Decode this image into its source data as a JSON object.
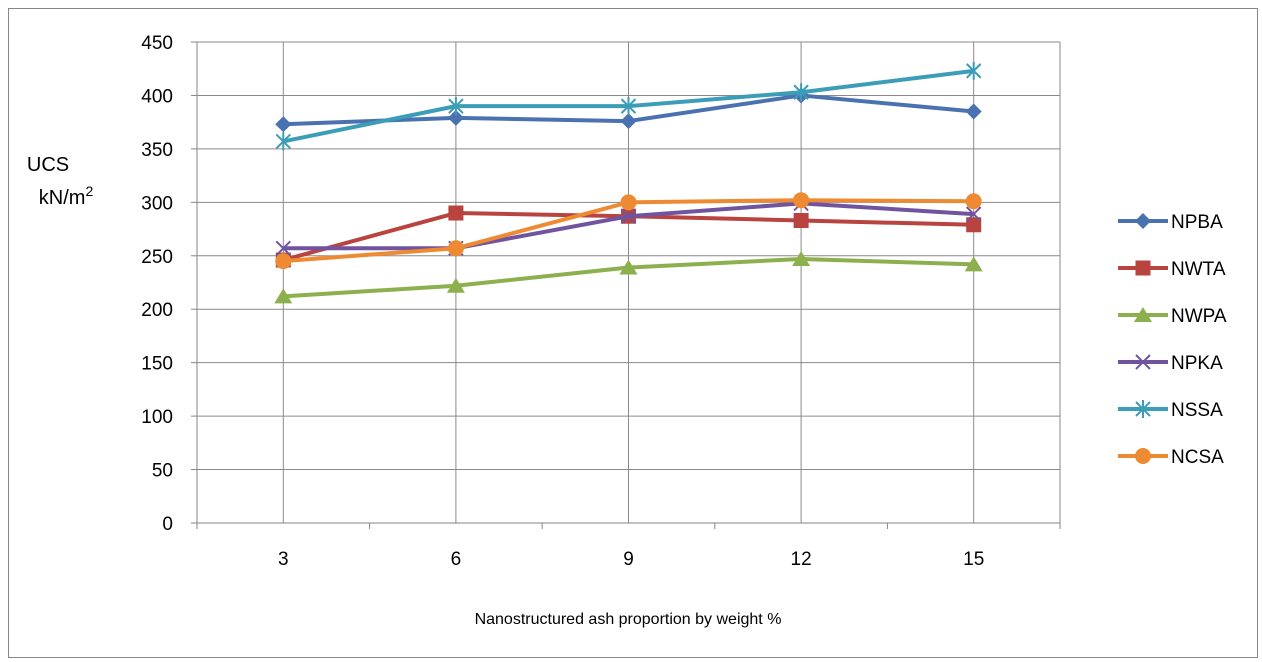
{
  "chart_data": {
    "type": "line",
    "x": [
      3,
      6,
      9,
      12,
      15
    ],
    "ylim": [
      0,
      450
    ],
    "yticks": [
      0,
      50,
      100,
      150,
      200,
      250,
      300,
      350,
      400,
      450
    ],
    "ylabel_line1": "UCS",
    "ylabel_unit": "kN/m",
    "ylabel_sup": "2",
    "xlabel": "Nanostructured ash proportion by weight %",
    "grid": true,
    "legend_position": "right",
    "series": [
      {
        "name": "NPBA",
        "color": "#4a72b0",
        "marker": "diamond",
        "values": [
          373,
          379,
          376,
          400,
          385
        ]
      },
      {
        "name": "NWTA",
        "color": "#b9433f",
        "marker": "square",
        "values": [
          246,
          290,
          287,
          283,
          279
        ]
      },
      {
        "name": "NWPA",
        "color": "#8cb04d",
        "marker": "triangle",
        "values": [
          212,
          222,
          239,
          247,
          242
        ]
      },
      {
        "name": "NPKA",
        "color": "#7054a0",
        "marker": "x",
        "values": [
          257,
          257,
          287,
          299,
          289
        ]
      },
      {
        "name": "NSSA",
        "color": "#3c9db8",
        "marker": "star",
        "values": [
          357,
          390,
          390,
          403,
          423
        ]
      },
      {
        "name": "NCSA",
        "color": "#ee8a32",
        "marker": "circle",
        "values": [
          245,
          257,
          300,
          302,
          301
        ]
      }
    ]
  }
}
